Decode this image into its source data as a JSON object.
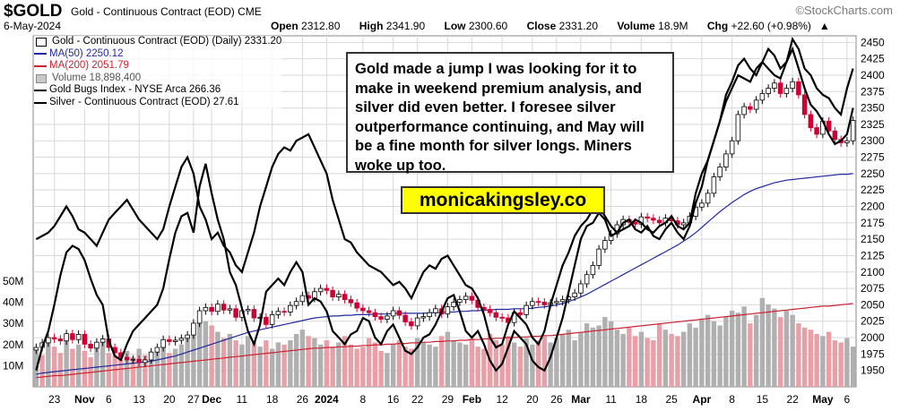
{
  "header": {
    "symbol": "$GOLD",
    "description": "Gold - Continuous Contract (EOD)",
    "exchange": "CME",
    "date": "6-May-2024",
    "brand": "©StockCharts.com",
    "open_label": "Open",
    "open": "2312.80",
    "high_label": "High",
    "high": "2341.90",
    "low_label": "Low",
    "low": "2300.60",
    "close_label": "Close",
    "close": "2331.20",
    "volume_label": "Volume",
    "volume": "18.9M",
    "chg_label": "Chg",
    "chg": "+22.60 (+0.98%)",
    "chg_arrow": "▲"
  },
  "legend": {
    "gold": "Gold - Continuous Contract (EOD) (Daily) 2331.20",
    "ma50": "MA(50) 2250.12",
    "ma200": "MA(200) 2051.79",
    "volume": "Volume 18,898,400",
    "gdx": "Gold Bugs Index - NYSE Arca 266.36",
    "silver": "Silver - Continuous Contract (EOD) 27.61"
  },
  "note": "Gold made a jump I was looking for it to make in weekend premium analysis, and silver did even better. I foresee silver outperformance continuing, and May will be a fine month for silver longs. Miners woke up too.",
  "promo": "monicakingsley.co",
  "colors": {
    "up": "#000000",
    "down": "#cc0033",
    "ma50": "#1f2aa0",
    "ma200": "#cc2233",
    "volume": "#b0b0b0",
    "volume_down": "#e8a0a8",
    "grid": "#d8d8d8"
  },
  "chart_data": {
    "type": "candlestick",
    "ylim": [
      1925,
      2460
    ],
    "yticks": [
      1950,
      1975,
      2000,
      2025,
      2050,
      2075,
      2100,
      2125,
      2150,
      2175,
      2200,
      2225,
      2250,
      2275,
      2300,
      2325,
      2350,
      2375,
      2400,
      2425,
      2450
    ],
    "volume_ticks": [
      "10M",
      "20M",
      "30M",
      "40M",
      "50M"
    ],
    "volume_tick_values": [
      10,
      20,
      30,
      40,
      50
    ],
    "volume_max": 58,
    "x_labels": [
      "23",
      "Nov",
      "6",
      "13",
      "20",
      "27",
      "Dec",
      "11",
      "18",
      "26",
      "2024",
      "8",
      "16",
      "22",
      "29",
      "Feb",
      "12",
      "20",
      "26",
      "Mar",
      "11",
      "18",
      "25",
      "Apr",
      "8",
      "15",
      "22",
      "May",
      "6"
    ],
    "x_label_bold": [
      "Nov",
      "Dec",
      "2024",
      "Feb",
      "Mar",
      "Apr",
      "May"
    ],
    "n_bars": 136,
    "x_label_bars": [
      3,
      8,
      12,
      17,
      22,
      26,
      29,
      34,
      39,
      44,
      48,
      54,
      59,
      63,
      68,
      72,
      77,
      82,
      86,
      90,
      95,
      100,
      105,
      110,
      115,
      120,
      125,
      130,
      134
    ],
    "close": [
      1985,
      1992,
      2000,
      1998,
      1995,
      2006,
      1997,
      2005,
      1990,
      1984,
      1993,
      1998,
      1985,
      1977,
      1970,
      1966,
      1967,
      1962,
      1966,
      1978,
      1985,
      1997,
      1994,
      1996,
      1999,
      2004,
      2022,
      2041,
      2046,
      2040,
      2051,
      2042,
      2044,
      2031,
      2041,
      2043,
      2030,
      2031,
      2020,
      2035,
      2040,
      2039,
      2049,
      2055,
      2064,
      2060,
      2070,
      2075,
      2072,
      2062,
      2066,
      2058,
      2053,
      2045,
      2041,
      2038,
      2032,
      2028,
      2033,
      2041,
      2034,
      2024,
      2018,
      2030,
      2032,
      2038,
      2044,
      2036,
      2047,
      2054,
      2058,
      2063,
      2057,
      2046,
      2043,
      2038,
      2031,
      2030,
      2023,
      2038,
      2035,
      2049,
      2055,
      2054,
      2050,
      2053,
      2055,
      2058,
      2062,
      2068,
      2082,
      2096,
      2110,
      2135,
      2148,
      2158,
      2172,
      2180,
      2176,
      2173,
      2184,
      2182,
      2179,
      2175,
      2182,
      2178,
      2172,
      2175,
      2185,
      2199,
      2205,
      2220,
      2245,
      2260,
      2280,
      2300,
      2340,
      2352,
      2348,
      2362,
      2372,
      2380,
      2388,
      2372,
      2380,
      2390,
      2370,
      2340,
      2320,
      2310,
      2330,
      2315,
      2302,
      2297,
      2300,
      2331
    ],
    "ma50": [
      1944,
      1946,
      1947,
      1948,
      1949,
      1950,
      1951,
      1952,
      1953,
      1954,
      1955,
      1956,
      1957,
      1958,
      1959,
      1960,
      1961,
      1962,
      1963,
      1964,
      1966,
      1968,
      1970,
      1972,
      1975,
      1978,
      1981,
      1984,
      1987,
      1990,
      1993,
      1996,
      1999,
      2002,
      2005,
      2008,
      2010,
      2012,
      2014,
      2016,
      2018,
      2020,
      2022,
      2024,
      2026,
      2028,
      2030,
      2031,
      2032,
      2033,
      2033,
      2034,
      2034,
      2035,
      2035,
      2035,
      2036,
      2036,
      2036,
      2037,
      2037,
      2037,
      2037,
      2037,
      2037,
      2038,
      2038,
      2038,
      2039,
      2039,
      2040,
      2040,
      2041,
      2041,
      2042,
      2042,
      2043,
      2043,
      2043,
      2044,
      2044,
      2044,
      2045,
      2046,
      2047,
      2048,
      2050,
      2052,
      2055,
      2058,
      2062,
      2066,
      2071,
      2076,
      2081,
      2086,
      2091,
      2096,
      2101,
      2106,
      2111,
      2116,
      2121,
      2126,
      2131,
      2136,
      2141,
      2147,
      2153,
      2160,
      2168,
      2176,
      2184,
      2192,
      2199,
      2206,
      2212,
      2218,
      2223,
      2227,
      2230,
      2233,
      2236,
      2238,
      2240,
      2241,
      2242,
      2243,
      2244,
      2245,
      2246,
      2247,
      2248,
      2249,
      2249,
      2250
    ],
    "ma200": [
      1939,
      1940,
      1941,
      1942,
      1942,
      1943,
      1944,
      1945,
      1946,
      1947,
      1948,
      1949,
      1950,
      1951,
      1952,
      1953,
      1954,
      1955,
      1956,
      1957,
      1958,
      1959,
      1960,
      1961,
      1962,
      1963,
      1964,
      1965,
      1966,
      1967,
      1968,
      1969,
      1970,
      1971,
      1972,
      1973,
      1974,
      1975,
      1976,
      1977,
      1978,
      1979,
      1980,
      1981,
      1982,
      1983,
      1984,
      1984,
      1985,
      1985,
      1986,
      1986,
      1987,
      1987,
      1988,
      1988,
      1989,
      1989,
      1990,
      1990,
      1991,
      1991,
      1992,
      1992,
      1993,
      1993,
      1994,
      1994,
      1995,
      1995,
      1996,
      1996,
      1997,
      1997,
      1998,
      1998,
      1999,
      1999,
      2000,
      2000,
      2001,
      2001,
      2002,
      2002,
      2003,
      2003,
      2004,
      2005,
      2006,
      2007,
      2008,
      2009,
      2010,
      2011,
      2012,
      2013,
      2014,
      2015,
      2016,
      2017,
      2018,
      2019,
      2020,
      2021,
      2022,
      2023,
      2024,
      2025,
      2026,
      2027,
      2028,
      2029,
      2030,
      2031,
      2032,
      2033,
      2034,
      2035,
      2036,
      2037,
      2038,
      2039,
      2040,
      2041,
      2042,
      2043,
      2044,
      2045,
      2046,
      2047,
      2048,
      2048,
      2049,
      2050,
      2051,
      2052
    ],
    "gdx": [
      1950,
      1985,
      2010,
      2050,
      2095,
      2130,
      2140,
      2135,
      2118,
      2090,
      2065,
      2050,
      1995,
      1972,
      1966,
      1990,
      2010,
      2020,
      2030,
      2040,
      2050,
      2075,
      2120,
      2160,
      2185,
      2190,
      2160,
      2230,
      2265,
      2220,
      2180,
      2150,
      2100,
      2080,
      2045,
      2010,
      1990,
      2020,
      2070,
      2080,
      2090,
      2080,
      2100,
      2115,
      2100,
      2050,
      2060,
      2055,
      2040,
      2010,
      2000,
      1990,
      2005,
      2010,
      2030,
      2025,
      2000,
      1990,
      2010,
      2020,
      2000,
      1980,
      1975,
      1985,
      2000,
      2005,
      2020,
      2040,
      2060,
      2065,
      2040,
      2010,
      2000,
      2010,
      1990,
      1965,
      1950,
      1960,
      1985,
      2010,
      2000,
      1990,
      1965,
      1955,
      1950,
      1970,
      2000,
      2030,
      2070,
      2110,
      2150,
      2170,
      2175,
      2190,
      2180,
      2155,
      2160,
      2175,
      2180,
      2165,
      2160,
      2170,
      2155,
      2150,
      2165,
      2175,
      2160,
      2150,
      2170,
      2205,
      2230,
      2270,
      2300,
      2330,
      2360,
      2380,
      2400,
      2395,
      2390,
      2410,
      2420,
      2410,
      2400,
      2395,
      2420,
      2440,
      2410,
      2380,
      2355,
      2345,
      2330,
      2310,
      2295,
      2300,
      2310,
      2350
    ],
    "silver": [
      2150,
      2155,
      2160,
      2170,
      2185,
      2200,
      2185,
      2165,
      2160,
      2150,
      2140,
      2160,
      2180,
      2190,
      2200,
      2210,
      2195,
      2180,
      2170,
      2160,
      2150,
      2165,
      2200,
      2230,
      2260,
      2275,
      2250,
      2200,
      2180,
      2150,
      2160,
      2140,
      2130,
      2110,
      2100,
      2130,
      2160,
      2200,
      2230,
      2260,
      2280,
      2290,
      2285,
      2300,
      2305,
      2310,
      2290,
      2270,
      2250,
      2210,
      2180,
      2150,
      2145,
      2130,
      2120,
      2110,
      2105,
      2100,
      2090,
      2080,
      2085,
      2075,
      2060,
      2080,
      2100,
      2110,
      2105,
      2120,
      2125,
      2110,
      2095,
      2080,
      2075,
      2060,
      2035,
      2000,
      1985,
      1990,
      2020,
      2040,
      2030,
      2020,
      2000,
      1990,
      2010,
      2050,
      2080,
      2110,
      2130,
      2155,
      2170,
      2180,
      2195,
      2200,
      2185,
      2170,
      2160,
      2165,
      2170,
      2180,
      2175,
      2165,
      2160,
      2170,
      2175,
      2185,
      2170,
      2165,
      2175,
      2220,
      2250,
      2270,
      2300,
      2330,
      2370,
      2390,
      2415,
      2425,
      2410,
      2400,
      2420,
      2440,
      2430,
      2410,
      2420,
      2455,
      2440,
      2410,
      2400,
      2380,
      2370,
      2365,
      2350,
      2340,
      2380,
      2410
    ],
    "volume": [
      18,
      15,
      21,
      19,
      16,
      22,
      18,
      20,
      17,
      14,
      19,
      21,
      16,
      15,
      13,
      17,
      14,
      18,
      15,
      16,
      17,
      19,
      16,
      18,
      20,
      24,
      28,
      33,
      31,
      29,
      26,
      23,
      25,
      22,
      20,
      24,
      21,
      19,
      22,
      18,
      21,
      20,
      22,
      25,
      27,
      24,
      23,
      20,
      22,
      19,
      21,
      24,
      20,
      18,
      19,
      23,
      21,
      17,
      16,
      20,
      22,
      19,
      18,
      23,
      21,
      20,
      19,
      24,
      26,
      22,
      21,
      20,
      23,
      19,
      18,
      25,
      22,
      20,
      24,
      21,
      19,
      23,
      20,
      22,
      24,
      21,
      23,
      25,
      27,
      22,
      26,
      30,
      28,
      29,
      33,
      31,
      27,
      25,
      28,
      24,
      26,
      23,
      22,
      30,
      27,
      25,
      24,
      26,
      30,
      28,
      32,
      34,
      31,
      29,
      33,
      36,
      35,
      38,
      30,
      34,
      42,
      39,
      37,
      33,
      36,
      34,
      30,
      28,
      27,
      25,
      24,
      26,
      22,
      21,
      23,
      19
    ],
    "volume_up": [
      true,
      false,
      true,
      false,
      false,
      true,
      false,
      true,
      false,
      false,
      true,
      true,
      false,
      false,
      false,
      true,
      false,
      true,
      false,
      true,
      true,
      true,
      false,
      true,
      true,
      true,
      true,
      true,
      true,
      false,
      true,
      false,
      true,
      false,
      true,
      true,
      false,
      true,
      false,
      true,
      true,
      false,
      true,
      true,
      true,
      false,
      true,
      true,
      false,
      false,
      true,
      false,
      false,
      false,
      false,
      false,
      false,
      false,
      true,
      true,
      false,
      false,
      false,
      true,
      true,
      true,
      true,
      false,
      true,
      true,
      true,
      true,
      false,
      false,
      false,
      false,
      false,
      false,
      false,
      true,
      false,
      true,
      true,
      false,
      false,
      true,
      true,
      true,
      true,
      true,
      true,
      true,
      true,
      true,
      true,
      true,
      true,
      true,
      false,
      false,
      true,
      false,
      false,
      false,
      true,
      false,
      false,
      true,
      true,
      true,
      true,
      true,
      true,
      true,
      true,
      true,
      true,
      true,
      false,
      true,
      true,
      true,
      true,
      false,
      true,
      true,
      false,
      false,
      false,
      false,
      true,
      false,
      false,
      false,
      true,
      true
    ]
  }
}
